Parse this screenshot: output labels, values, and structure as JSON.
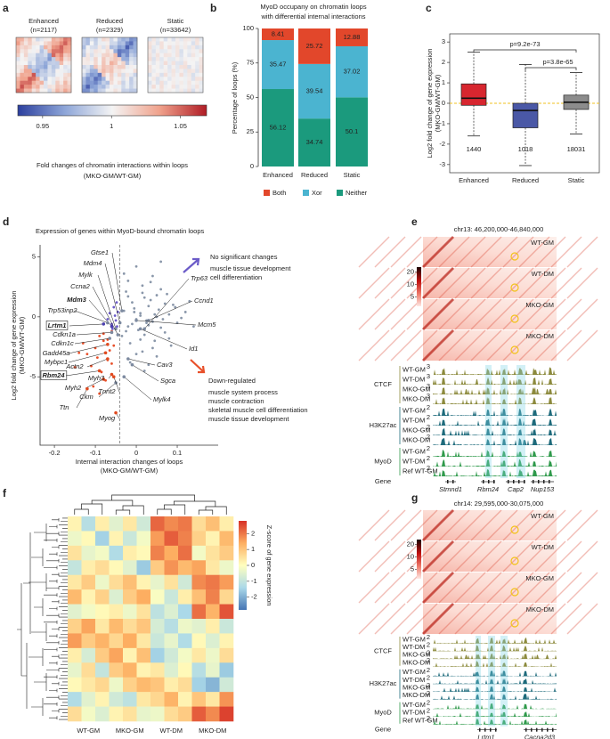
{
  "panel_letters": [
    "a",
    "b",
    "c",
    "d",
    "e",
    "f",
    "g"
  ],
  "panel_a": {
    "maps": [
      {
        "name": "Enhanced",
        "n": "(n=2117)"
      },
      {
        "name": "Reduced",
        "n": "(n=2329)"
      },
      {
        "name": "Static",
        "n": "(n=33642)"
      }
    ],
    "colorbar_lim": [
      0.932,
      1.069
    ],
    "colorbar_ticks": [
      0.95,
      1,
      1.05
    ],
    "caption": [
      "Fold changes of  chromatin  interactions within loops",
      "(MKO-GM/WT-GM)"
    ]
  },
  "chart_data": [
    {
      "type": "bar",
      "stacked": true,
      "title": [
        "MyoD occupany on chromatin loops",
        "with differential internal interactions"
      ],
      "ylabel": "Percentage of loops (%)",
      "categories": [
        "Enhanced",
        "Reduced",
        "Static"
      ],
      "series": [
        {
          "name": "Neither",
          "color": "#1b9a7d",
          "values": [
            56.12,
            34.74,
            50.1
          ]
        },
        {
          "name": "Xor",
          "color": "#4bb4d0",
          "values": [
            35.47,
            39.54,
            37.02
          ]
        },
        {
          "name": "Both",
          "color": "#e2472b",
          "values": [
            8.41,
            25.72,
            12.88
          ]
        }
      ],
      "ylim": [
        0,
        100
      ],
      "yticks": [
        0,
        25,
        50,
        75,
        100
      ]
    },
    {
      "type": "box",
      "ylabel": [
        "Log2 fold change of gene expression",
        "(MKO-GM/WT-GM)"
      ],
      "categories": [
        "Enhanced",
        "Reduced",
        "Static"
      ],
      "colors": [
        "#d7262f",
        "#4a58a6",
        "#8c8c8c"
      ],
      "whisker_low": [
        -1.6,
        -3.05,
        -1.5
      ],
      "q1": [
        -0.1,
        -1.2,
        -0.3
      ],
      "median": [
        0.25,
        -0.35,
        0.05
      ],
      "q3": [
        0.95,
        0.0,
        0.4
      ],
      "whisker_high": [
        2.5,
        1.9,
        1.5
      ],
      "n": [
        1440,
        1018,
        18031
      ],
      "reference_line": 0,
      "ylim": [
        -3.4,
        3.4
      ],
      "yticks": [
        -3,
        -2,
        -1,
        0,
        1,
        2,
        3
      ],
      "annotations": [
        "p=9.2e-73",
        "p=3.8e-65"
      ]
    },
    {
      "type": "scatter",
      "title": "Expression of genes within MyoD-bound chromatin loops",
      "xlabel": [
        "Internal interaction changes of loops",
        "(MKO-GM/WT-GM)"
      ],
      "ylabel": [
        "Log2 fold change of gene expression",
        "(MKO-GM/WT-GM)"
      ],
      "xlim": [
        -0.235,
        0.2
      ],
      "ylim": [
        -10.7,
        6
      ],
      "xticks": [
        -0.2,
        -0.1,
        0,
        0.1
      ],
      "yticks": [
        -5,
        0,
        5
      ],
      "threshold_x": -0.04,
      "series": [
        {
          "color": "#8a97aa",
          "x": [
            -0.03,
            -0.02,
            -0.01,
            0,
            0.01,
            0.02,
            0.03,
            0.04,
            0.05,
            0.06,
            0.08,
            0.1,
            0.12,
            -0.025,
            -0.015,
            -0.005,
            0.005,
            0.015,
            0.025,
            0.035,
            0.045,
            0.055,
            0.07,
            0.09,
            0.11,
            -0.035,
            -0.02,
            0,
            0.02,
            0.04,
            0.06,
            0.08,
            -0.01,
            0.01,
            0.03,
            0.05,
            0.07,
            -0.03,
            -0.015,
            0.015,
            0.035,
            0.065,
            0.095,
            0,
            0.02,
            0.04,
            -0.02,
            0.01,
            0.05,
            0.085,
            0.13,
            0.14,
            -0.005,
            0.025,
            0.045,
            0.075,
            0.015,
            -0.025,
            0.03,
            0.06
          ],
          "y": [
            0.5,
            -0.8,
            1.2,
            -0.2,
            0.3,
            -1.5,
            0.9,
            -0.4,
            1.8,
            -0.9,
            0.2,
            -0.5,
            0.4,
            2.1,
            -2.2,
            0.7,
            -1.1,
            2.6,
            -0.3,
            1.4,
            -2.0,
            0.6,
            -1.3,
            1.0,
            -0.1,
            -1.6,
            3.0,
            -3.1,
            1.6,
            -2.6,
            2.3,
            -1.8,
            -0.6,
            0.1,
            -0.7,
            0.0,
            1.1,
            3.6,
            -3.8,
            -2.9,
            2.9,
            -0.2,
            0.8,
            4.2,
            -4.5,
            3.4,
            1.7,
            -1.9,
            -3.3,
            -2.4,
            1.3,
            -0.8,
            0.4,
            -0.5,
            0.2,
            1.9,
            2.0,
            -1.2,
            -4.0,
            4.6
          ]
        },
        {
          "color": "#e8502a",
          "x": [
            -0.06,
            -0.08,
            -0.1,
            -0.12,
            -0.07,
            -0.09,
            -0.11,
            -0.065,
            -0.085,
            -0.13,
            -0.075,
            -0.095,
            -0.055,
            -0.15,
            -0.07,
            -0.105,
            -0.06,
            -0.08,
            -0.14,
            -0.09
          ],
          "y": [
            -1.2,
            -2.0,
            -2.6,
            -3.1,
            -3.6,
            -1.6,
            -4.1,
            -2.8,
            -4.6,
            -2.2,
            -5.3,
            -3.4,
            -2.4,
            -4.2,
            -1.9,
            -5.8,
            -3.9,
            -1.4,
            -3.0,
            -6.4
          ]
        },
        {
          "color": "#6b5bc8",
          "x": [
            -0.045,
            -0.05,
            -0.055,
            -0.06,
            -0.048,
            -0.052,
            -0.058,
            -0.065,
            -0.047,
            -0.07
          ],
          "y": [
            0.4,
            -0.3,
            0.8,
            -0.6,
            1.2,
            0.1,
            -1.0,
            0.3,
            -0.8,
            -0.2
          ]
        }
      ],
      "genes": [
        {
          "name": "Gtse1",
          "x": -0.035,
          "y": 0.5,
          "color": "#7d8aa0"
        },
        {
          "name": "Mdm4",
          "x": -0.04,
          "y": -0.5,
          "color": "#7d8aa0"
        },
        {
          "name": "Mylk",
          "x": -0.05,
          "y": -1,
          "color": "#7d8aa0"
        },
        {
          "name": "Ccna2",
          "x": -0.045,
          "y": -1.5,
          "color": "#7d8aa0"
        },
        {
          "name": "Mdm3",
          "x": -0.06,
          "y": -0.8,
          "color": "#4b3fb0"
        },
        {
          "name": "Trp53inp2",
          "x": -0.07,
          "y": -0.5,
          "color": "#7d8aa0"
        },
        {
          "name": "Lrtm1",
          "x": -0.08,
          "y": -0.6,
          "color": "#4b3fb0",
          "boxed": true
        },
        {
          "name": "Cdkn1a",
          "x": -0.06,
          "y": -1.3,
          "color": "#7d8aa0"
        },
        {
          "name": "Cdkn1c",
          "x": -0.065,
          "y": -1.8,
          "color": "#7d8aa0"
        },
        {
          "name": "Gadd45a",
          "x": -0.07,
          "y": -2.3,
          "color": "#e04a1f"
        },
        {
          "name": "Mybpc1",
          "x": -0.075,
          "y": -3,
          "color": "#e04a1f"
        },
        {
          "name": "Actn2",
          "x": -0.07,
          "y": -3.5,
          "color": "#e04a1f"
        },
        {
          "name": "Rbm24",
          "x": -0.09,
          "y": -4.5,
          "color": "#e04a1f",
          "boxed": true
        },
        {
          "name": "Myh2",
          "x": -0.08,
          "y": -5.2,
          "color": "#e04a1f"
        },
        {
          "name": "Myh3",
          "x": -0.06,
          "y": -4.8,
          "color": "#e04a1f"
        },
        {
          "name": "Ckm",
          "x": -0.05,
          "y": -5.5,
          "color": "#7d8aa0"
        },
        {
          "name": "Tnnt2",
          "x": -0.055,
          "y": -5,
          "color": "#e04a1f"
        },
        {
          "name": "Ttn",
          "x": -0.12,
          "y": -6,
          "color": "#e04a1f"
        },
        {
          "name": "Myog",
          "x": -0.05,
          "y": -8,
          "color": "#e04a1f"
        },
        {
          "name": "Trp63",
          "x": 0.02,
          "y": -1,
          "color": "#7d8aa0"
        },
        {
          "name": "Ccnd1",
          "x": 0.03,
          "y": -0.3,
          "color": "#7d8aa0"
        },
        {
          "name": "Mcm5",
          "x": 0.0,
          "y": -0.3,
          "color": "#7d8aa0"
        },
        {
          "name": "Id1",
          "x": 0.01,
          "y": -1,
          "color": "#7d8aa0"
        },
        {
          "name": "Cav3",
          "x": -0.02,
          "y": -3.5,
          "color": "#7d8aa0"
        },
        {
          "name": "Sgca",
          "x": -0.01,
          "y": -4,
          "color": "#7d8aa0"
        },
        {
          "name": "Mylk4",
          "x": -0.03,
          "y": -5,
          "color": "#7d8aa0"
        }
      ],
      "annotations": [
        {
          "title": "No significant changes",
          "terms": [
            "muscle tissue development",
            "cell differentiation"
          ],
          "color": "#6b5bc8"
        },
        {
          "title": "Down-regulated",
          "terms": [
            "muscle system process",
            "muscle contraction",
            "skeletal muscle cell differentiation",
            "muscle tissue development"
          ],
          "color": "#e8502a"
        }
      ]
    },
    {
      "type": "heatmap",
      "columns": [
        "WT-GM",
        "MKO-GM",
        "WT-DM",
        "MKO-DM"
      ],
      "values": [
        [
          0.2,
          -1.2,
          0.3,
          -0.5,
          0.4,
          -0.8,
          2.2,
          1.8,
          2.0,
          0.6,
          1.1,
          0.3
        ],
        [
          -0.3,
          0.1,
          -1.5,
          0.2,
          -0.9,
          -0.2,
          1.6,
          2.3,
          1.9,
          0.8,
          0.2,
          1.2
        ],
        [
          0.5,
          -0.4,
          -0.2,
          -1.3,
          0.3,
          0.1,
          1.9,
          1.4,
          2.1,
          -0.2,
          0.5,
          0.9
        ],
        [
          -1.0,
          0.3,
          0.6,
          0.1,
          -0.5,
          -1.6,
          0.9,
          1.7,
          1.2,
          1.5,
          0.4,
          -0.3
        ],
        [
          0.4,
          0.9,
          -0.3,
          0.6,
          1.1,
          0.2,
          -0.4,
          0.5,
          -0.8,
          1.8,
          2.0,
          1.6
        ],
        [
          1.2,
          0.2,
          0.8,
          -0.6,
          0.9,
          1.4,
          -0.1,
          -0.9,
          0.3,
          1.1,
          1.9,
          0.7
        ],
        [
          -0.5,
          -0.2,
          0.1,
          0.3,
          -0.3,
          0.5,
          -1.1,
          -0.6,
          -1.4,
          2.1,
          1.3,
          2.4
        ],
        [
          0.8,
          1.5,
          0.4,
          1.2,
          0.6,
          1.0,
          -0.7,
          -1.2,
          -0.3,
          -0.5,
          0.3,
          -0.9
        ],
        [
          1.6,
          0.9,
          1.3,
          0.7,
          1.4,
          0.4,
          -0.9,
          -0.4,
          -1.3,
          0.1,
          -0.6,
          0.2
        ],
        [
          0.3,
          -0.7,
          0.9,
          1.5,
          0.2,
          1.1,
          -1.5,
          -0.8,
          -0.2,
          0.4,
          -0.3,
          0.6
        ],
        [
          -0.4,
          0.6,
          -1.0,
          0.9,
          1.3,
          0.2,
          0.4,
          -0.6,
          0.1,
          -1.2,
          -0.4,
          -1.6
        ],
        [
          0.1,
          0.4,
          0.7,
          -0.3,
          0.8,
          1.2,
          1.0,
          0.3,
          0.6,
          -1.5,
          -1.9,
          -0.8
        ],
        [
          -1.3,
          -0.5,
          0.2,
          -0.8,
          -1.1,
          0.4,
          0.7,
          1.3,
          0.2,
          1.0,
          0.4,
          1.7
        ],
        [
          0.6,
          -0.2,
          -0.6,
          0.2,
          0.5,
          -0.4,
          -0.3,
          0.6,
          0.9,
          2.3,
          1.8,
          2.6
        ]
      ],
      "colorbar_label": "Z-score of gene expression",
      "zlim": [
        -2.8,
        2.8
      ],
      "zticks": [
        2,
        1,
        0,
        -1,
        -2
      ]
    }
  ],
  "panel_e": {
    "region": "chr13: 46,200,000-46,840,000",
    "hic_tracks": [
      "WT-GM",
      "WT-DM",
      "MKO-GM",
      "MKO-DM"
    ],
    "colorbar_scale": "log",
    "colorbar_lim": [
      3,
      26
    ],
    "colorbar_ticks": [
      20,
      10,
      5
    ],
    "groups": [
      {
        "name": "CTCF",
        "color": "#8c8a3c",
        "tracks": [
          "WT-GM",
          "WT-DM",
          "MKO-GM",
          "MKO-DM"
        ],
        "scales": [
          3,
          3,
          3,
          3
        ]
      },
      {
        "name": "H3K27ac",
        "color": "#1d6a7b",
        "tracks": [
          "WT-GM",
          "WT-DM",
          "MKO-GM",
          "MKO-DM"
        ],
        "scales": [
          2,
          2,
          2,
          2
        ]
      },
      {
        "name": "MyoD",
        "color": "#2f9a4b",
        "tracks": [
          "WT-GM",
          "WT-DM",
          "Ref WT-GM"
        ],
        "scales": [
          2,
          2,
          2
        ]
      }
    ],
    "gene_label": "Gene",
    "genes": [
      {
        "name": "Stmnd1",
        "color": "#111111"
      },
      {
        "name": "Rbm24",
        "color": "#d7262f"
      },
      {
        "name": "Cap2",
        "color": "#111111"
      },
      {
        "name": "Nup153",
        "color": "#111111"
      }
    ]
  },
  "panel_g": {
    "region": "chr14: 29,595,000-30,075,000",
    "hic_tracks": [
      "WT-GM",
      "WT-DM",
      "MKO-GM",
      "MKO-DM"
    ],
    "colorbar_scale": "log",
    "colorbar_lim": [
      3,
      26
    ],
    "colorbar_ticks": [
      20,
      10,
      5
    ],
    "groups": [
      {
        "name": "CTCF",
        "color": "#8c8a3c",
        "tracks": [
          "WT-GM",
          "WT-DM",
          "MKO-GM",
          "MKO-DM"
        ],
        "scales": [
          2,
          2,
          2,
          2
        ]
      },
      {
        "name": "H3K27ac",
        "color": "#1d6a7b",
        "tracks": [
          "WT-GM",
          "WT-DM",
          "MKO-GM",
          "MKO-DM"
        ],
        "scales": [
          2,
          2,
          2,
          2
        ]
      },
      {
        "name": "MyoD",
        "color": "#2f9a4b",
        "tracks": [
          "WT-GM",
          "WT-DM",
          "Ref WT-GM"
        ],
        "scales": [
          2,
          2,
          2
        ]
      }
    ],
    "gene_label": "Gene",
    "genes": [
      {
        "name": "Lrtm1",
        "color": "#d7262f"
      },
      {
        "name": "Cacna2d3",
        "color": "#111111"
      }
    ]
  }
}
